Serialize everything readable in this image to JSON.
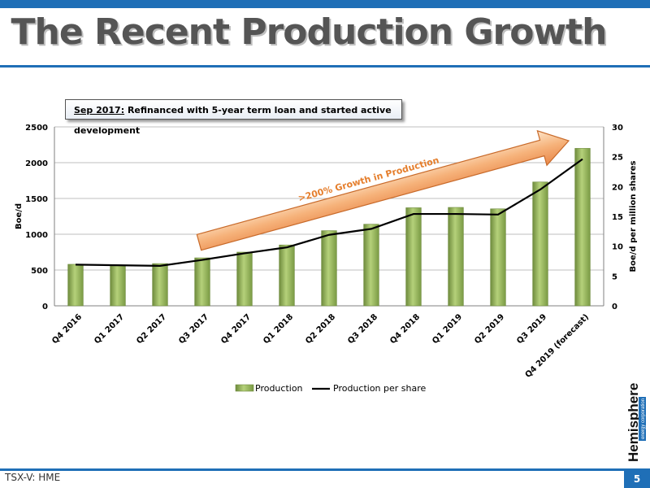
{
  "slide": {
    "title": "The Recent Production Growth",
    "callout_highlight": "Sep 2017:",
    "callout_text": " Refinanced with 5-year term loan and started active development",
    "arrow_label": ">200% Growth in Production",
    "footer": "TSX-V: HME",
    "page_number": "5",
    "logo_word": "Hemisphere",
    "logo_sub": "energy corporation",
    "colors": {
      "accent": "#1f6fb7",
      "bar": "#9bbb59",
      "line": "#000000",
      "arrow": "#f4a460"
    }
  },
  "chart_data": {
    "type": "bar",
    "categories": [
      "Q4 2016",
      "Q1 2017",
      "Q2 2017",
      "Q3 2017",
      "Q4 2017",
      "Q1 2018",
      "Q2 2018",
      "Q3 2018",
      "Q4 2018",
      "Q1 2019",
      "Q2 2019",
      "Q3 2019",
      "Q4 2019 (forecast)"
    ],
    "series": [
      {
        "name": "Production",
        "type": "bar",
        "axis": "left",
        "values": [
          580,
          560,
          590,
          670,
          750,
          850,
          1050,
          1140,
          1370,
          1375,
          1355,
          1730,
          2200
        ]
      },
      {
        "name": "Production per share",
        "type": "line",
        "axis": "right",
        "values": [
          6.9,
          6.8,
          6.7,
          7.7,
          8.8,
          9.8,
          11.9,
          12.9,
          15.4,
          15.4,
          15.3,
          19.5,
          24.6
        ]
      }
    ],
    "ylabel": "Boe/d",
    "y2label": "Boe/d per million shares",
    "ylim": [
      0,
      2500
    ],
    "y2lim": [
      0,
      30
    ],
    "yticks": [
      "0",
      "500",
      "1000",
      "1500",
      "2000",
      "2500"
    ],
    "y2ticks": [
      "0",
      "5",
      "10",
      "15",
      "20",
      "25",
      "30"
    ],
    "legend_placement": "bottom",
    "grid": true
  }
}
